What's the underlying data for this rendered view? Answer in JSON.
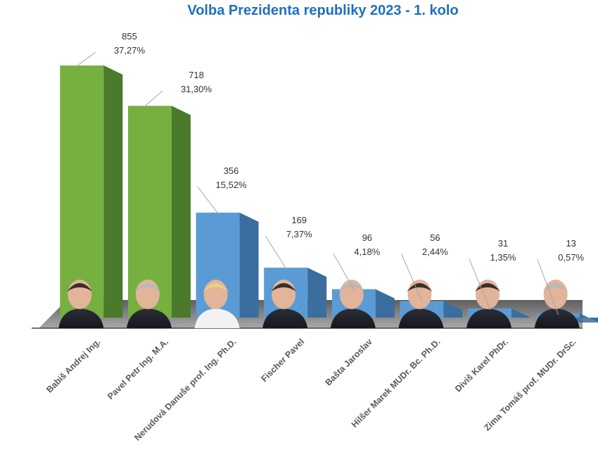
{
  "chart_data": {
    "type": "bar",
    "title": "Volba Prezidenta republiky 2023 - 1. kolo",
    "categories": [
      "Babiš Andrej Ing.",
      "Pavel Petr Ing. M.A.",
      "Nerudová Danuše prof. Ing. Ph.D.",
      "Fischer Pavel",
      "Bašta Jaroslav",
      "Hilšer Marek MUDr. Bc. Ph.D.",
      "Diviš Karel PhDr.",
      "Zima Tomáš prof. MUDr. DrSc."
    ],
    "values": [
      855,
      718,
      356,
      169,
      96,
      56,
      31,
      13
    ],
    "percent_labels": [
      "37,27%",
      "31,30%",
      "15,52%",
      "7,37%",
      "4,18%",
      "2,44%",
      "1,35%",
      "0,57%"
    ],
    "ylim": [
      0,
      900
    ],
    "grid": false,
    "legend": "none",
    "colors": {
      "leading": "#76b041",
      "leading_side": "#4a7a2a",
      "other": "#5b9bd5",
      "other_side": "#3b6e9e",
      "floor": "#7f7f7f",
      "title": "#1f6fc0"
    }
  }
}
